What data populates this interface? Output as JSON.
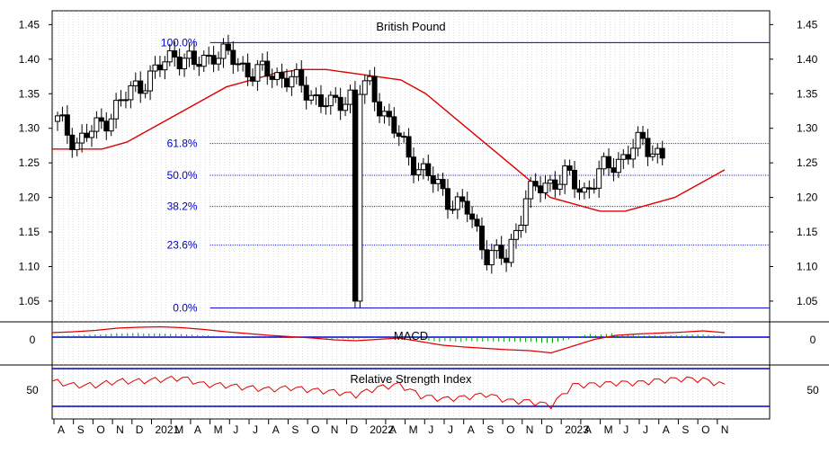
{
  "chart_data": {
    "type": "candlestick",
    "title": "British Pound",
    "grid": true,
    "y_axis": {
      "range": [
        1.02,
        1.47
      ],
      "ticks": [
        "1.45",
        "1.40",
        "1.35",
        "1.30",
        "1.25",
        "1.20",
        "1.15",
        "1.10",
        "1.05"
      ]
    },
    "x_axis": {
      "month_labels": [
        "A",
        "S",
        "O",
        "N",
        "D",
        "2021",
        "M",
        "A",
        "M",
        "J",
        "J",
        "A",
        "S",
        "O",
        "N",
        "D",
        "2022",
        "A",
        "M",
        "J",
        "J",
        "A",
        "S",
        "O",
        "N",
        "D",
        "2023",
        "A",
        "M",
        "J",
        "J",
        "A",
        "S",
        "O",
        "N"
      ]
    },
    "price_series": {
      "name": "British Pound",
      "start_month": "2020-08",
      "monthly_close": [
        1.31,
        1.28,
        1.3,
        1.33,
        1.36,
        1.38,
        1.41,
        1.39,
        1.41,
        1.4,
        1.38,
        1.38,
        1.37,
        1.35,
        1.33,
        1.35,
        1.36,
        1.31,
        1.26,
        1.23,
        1.2,
        1.18,
        1.12,
        1.11,
        1.2,
        1.22,
        1.23,
        1.21,
        1.24,
        1.26,
        1.28,
        1.26
      ],
      "high": 1.424,
      "low": 1.04
    },
    "moving_average": {
      "color": "#e00000",
      "monthly_values": [
        1.27,
        1.27,
        1.27,
        1.28,
        1.3,
        1.32,
        1.34,
        1.36,
        1.37,
        1.38,
        1.385,
        1.385,
        1.38,
        1.375,
        1.37,
        1.35,
        1.32,
        1.29,
        1.26,
        1.23,
        1.2,
        1.19,
        1.18,
        1.18,
        1.19,
        1.2,
        1.22,
        1.24
      ]
    },
    "fibonacci": {
      "color": "#0000cc",
      "levels": [
        {
          "label": "100.0%",
          "value": 1.424
        },
        {
          "label": "61.8%",
          "value": 1.278
        },
        {
          "label": "50.0%",
          "value": 1.232
        },
        {
          "label": "38.2%",
          "value": 1.187
        },
        {
          "label": "23.6%",
          "value": 1.131
        },
        {
          "label": "0.0%",
          "value": 1.04
        }
      ]
    },
    "macd_panel": {
      "title": "MACD",
      "zero_label": "0",
      "line_color": "#e00000",
      "histogram_color": "#00a000",
      "monthly_values": [
        0.01,
        0.012,
        0.015,
        0.02,
        0.022,
        0.023,
        0.021,
        0.017,
        0.012,
        0.008,
        0.004,
        0.001,
        -0.002,
        -0.006,
        -0.008,
        -0.005,
        -0.002,
        -0.01,
        -0.018,
        -0.022,
        -0.025,
        -0.028,
        -0.03,
        -0.035,
        -0.02,
        -0.005,
        0.004,
        0.007,
        0.009,
        0.011,
        0.014,
        0.01
      ]
    },
    "rsi_panel": {
      "title": "Relative Strength Index",
      "level_label": "50",
      "line_color": "#e00000",
      "monthly_values": [
        60,
        55,
        55,
        60,
        60,
        62,
        64,
        56,
        55,
        52,
        50,
        52,
        49,
        47,
        43,
        52,
        56,
        42,
        38,
        40,
        44,
        36,
        35,
        30,
        55,
        56,
        58,
        58,
        61,
        63,
        62,
        55
      ]
    },
    "x_range": [
      "2020-08",
      "2023-11"
    ]
  }
}
